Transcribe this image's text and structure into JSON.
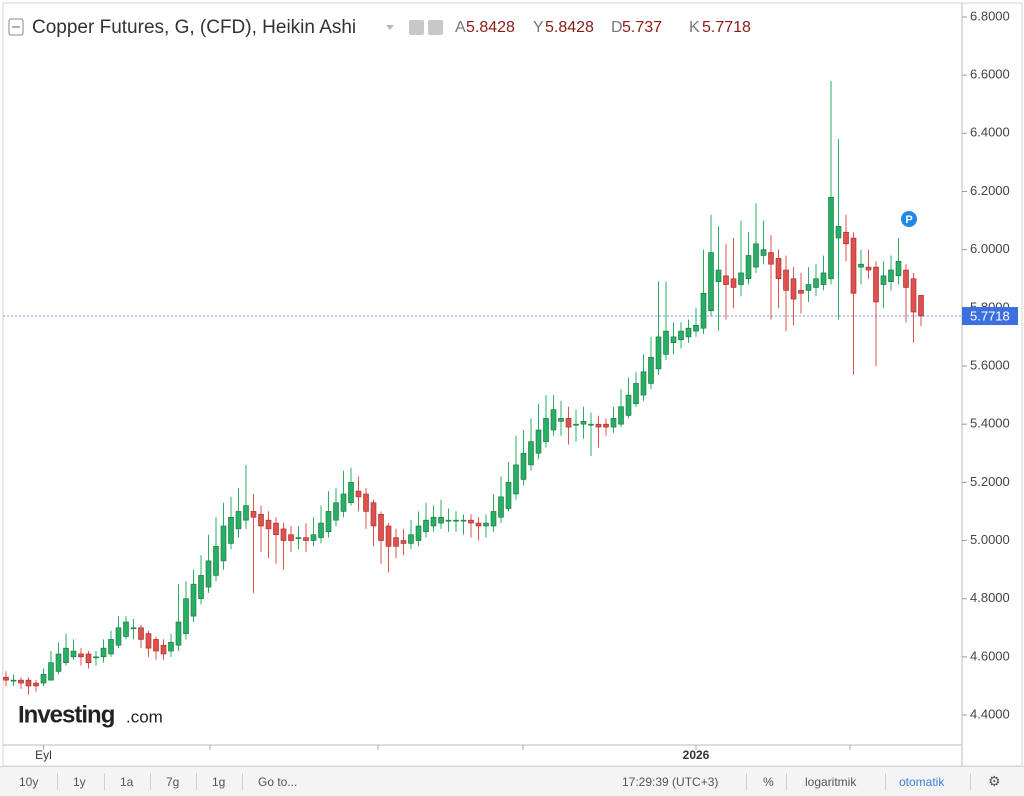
{
  "chart_data": {
    "type": "candlestick",
    "title": "Copper Futures, G, (CFD), Heikin Ashi",
    "ohlc_labels": [
      "A",
      "Y",
      "D",
      "K"
    ],
    "categories": [
      null,
      null,
      null,
      null,
      null,
      "Eyl",
      null,
      null,
      null,
      null,
      null,
      null,
      null,
      null,
      null,
      null,
      null,
      null,
      null,
      null,
      null,
      null,
      null,
      null,
      null,
      null,
      null,
      null,
      null,
      null,
      null,
      null,
      null,
      null,
      null,
      null,
      null,
      null,
      null,
      null,
      null,
      null,
      null,
      null,
      null,
      null,
      null,
      null,
      null,
      null,
      null,
      null,
      null,
      null,
      null,
      null,
      null,
      null,
      null,
      null,
      null,
      null,
      null,
      null,
      null,
      null,
      null,
      null,
      null,
      null,
      null,
      null,
      null,
      null,
      null,
      null,
      null,
      null,
      null,
      null,
      null,
      null,
      null,
      null,
      null,
      null,
      null,
      null,
      null,
      null,
      null,
      null,
      "2026",
      null,
      null,
      null,
      null,
      null,
      null,
      null,
      null,
      null,
      null,
      null,
      null,
      null,
      null,
      null,
      null,
      null,
      null,
      null,
      null,
      null,
      null,
      null,
      null,
      null,
      null,
      null,
      null,
      null,
      null
    ],
    "open": [
      4.53,
      4.52,
      4.52,
      4.52,
      4.51,
      4.51,
      4.52,
      4.55,
      4.58,
      4.6,
      4.61,
      4.61,
      4.6,
      4.6,
      4.61,
      4.64,
      4.67,
      4.7,
      4.7,
      4.68,
      4.66,
      4.64,
      4.62,
      4.64,
      4.68,
      4.74,
      4.8,
      4.84,
      4.88,
      4.93,
      4.99,
      5.04,
      5.07,
      5.1,
      5.09,
      5.07,
      5.06,
      5.04,
      5.02,
      5.01,
      5.01,
      5.0,
      5.01,
      5.03,
      5.07,
      5.1,
      5.13,
      5.17,
      5.16,
      5.13,
      5.09,
      5.05,
      5.01,
      5.0,
      4.99,
      5.0,
      5.03,
      5.05,
      5.06,
      5.07,
      5.07,
      5.07,
      5.07,
      5.06,
      5.05,
      5.05,
      5.08,
      5.11,
      5.16,
      5.21,
      5.26,
      5.3,
      5.34,
      5.38,
      5.41,
      5.42,
      5.4,
      5.4,
      5.4,
      5.4,
      5.4,
      5.39,
      5.4,
      5.43,
      5.47,
      5.5,
      5.54,
      5.59,
      5.64,
      5.68,
      5.69,
      5.7,
      5.72,
      5.73,
      5.79,
      5.89,
      5.91,
      5.9,
      5.88,
      5.9,
      5.94,
      5.98,
      5.99,
      5.97,
      5.93,
      5.9,
      5.86,
      5.86,
      5.87,
      5.88,
      5.9,
      6.04,
      6.06,
      6.04,
      5.94,
      5.94,
      5.94,
      5.88,
      5.89,
      5.91,
      5.93,
      5.9,
      5.8428
    ],
    "high": [
      4.55,
      4.54,
      4.53,
      4.53,
      4.52,
      4.56,
      4.62,
      4.65,
      4.68,
      4.66,
      4.63,
      4.62,
      4.62,
      4.66,
      4.69,
      4.74,
      4.74,
      4.73,
      4.71,
      4.69,
      4.67,
      4.66,
      4.68,
      4.85,
      4.86,
      4.9,
      4.95,
      5.02,
      5.08,
      5.13,
      5.15,
      5.18,
      5.26,
      5.16,
      5.12,
      5.1,
      5.08,
      5.06,
      5.05,
      5.05,
      5.06,
      5.08,
      5.12,
      5.17,
      5.18,
      5.24,
      5.25,
      5.22,
      5.18,
      5.14,
      5.1,
      5.06,
      5.04,
      5.04,
      5.07,
      5.1,
      5.13,
      5.12,
      5.14,
      5.11,
      5.1,
      5.09,
      5.09,
      5.08,
      5.09,
      5.16,
      5.22,
      5.27,
      5.36,
      5.38,
      5.42,
      5.47,
      5.5,
      5.5,
      5.48,
      5.46,
      5.45,
      5.46,
      5.44,
      5.43,
      5.42,
      5.46,
      5.52,
      5.56,
      5.58,
      5.64,
      5.7,
      5.89,
      5.89,
      5.75,
      5.75,
      5.76,
      5.8,
      6.0,
      6.12,
      6.08,
      6.02,
      6.04,
      6.1,
      6.06,
      6.16,
      6.1,
      6.05,
      6.0,
      5.98,
      5.94,
      5.92,
      5.94,
      5.95,
      5.98,
      6.58,
      6.38,
      6.12,
      6.06,
      6.0,
      6.0,
      5.96,
      5.96,
      5.98,
      6.04,
      5.95,
      5.92,
      5.8428
    ],
    "low": [
      4.5,
      4.5,
      4.49,
      4.47,
      4.48,
      4.5,
      4.52,
      4.54,
      4.57,
      4.59,
      4.57,
      4.56,
      4.57,
      4.58,
      4.6,
      4.63,
      4.66,
      4.66,
      4.63,
      4.6,
      4.59,
      4.59,
      4.6,
      4.62,
      4.66,
      4.72,
      4.78,
      4.82,
      4.86,
      4.9,
      4.97,
      5.01,
      5.04,
      4.82,
      4.96,
      4.94,
      4.92,
      4.9,
      4.96,
      4.97,
      4.96,
      4.98,
      4.99,
      5.01,
      5.05,
      5.08,
      5.12,
      5.1,
      5.04,
      4.98,
      4.92,
      4.89,
      4.94,
      4.95,
      4.97,
      4.98,
      5.01,
      5.03,
      5.04,
      5.03,
      5.03,
      5.02,
      5.01,
      5.0,
      5.01,
      5.03,
      5.06,
      5.1,
      5.14,
      5.19,
      5.24,
      5.28,
      5.32,
      5.36,
      5.36,
      5.33,
      5.34,
      5.35,
      5.29,
      5.32,
      5.36,
      5.37,
      5.39,
      5.42,
      5.46,
      5.48,
      5.52,
      5.57,
      5.62,
      5.64,
      5.66,
      5.68,
      5.7,
      5.71,
      5.77,
      5.72,
      5.76,
      5.8,
      5.84,
      5.88,
      5.92,
      5.95,
      5.76,
      5.8,
      5.72,
      5.74,
      5.78,
      5.82,
      5.84,
      5.86,
      5.88,
      5.76,
      5.96,
      5.57,
      5.88,
      5.9,
      5.6,
      5.8,
      5.86,
      5.88,
      5.75,
      5.68,
      5.737
    ],
    "close": [
      4.52,
      4.52,
      4.51,
      4.5,
      4.5,
      4.54,
      4.58,
      4.61,
      4.63,
      4.62,
      4.6,
      4.58,
      4.6,
      4.63,
      4.66,
      4.7,
      4.72,
      4.7,
      4.66,
      4.63,
      4.62,
      4.61,
      4.65,
      4.72,
      4.8,
      4.85,
      4.88,
      4.93,
      4.98,
      5.05,
      5.08,
      5.1,
      5.12,
      5.08,
      5.05,
      5.04,
      5.02,
      5.0,
      5.0,
      5.01,
      5.0,
      5.02,
      5.06,
      5.1,
      5.13,
      5.16,
      5.2,
      5.15,
      5.1,
      5.05,
      5.0,
      4.98,
      4.98,
      4.99,
      5.02,
      5.05,
      5.07,
      5.08,
      5.08,
      5.07,
      5.07,
      5.07,
      5.06,
      5.05,
      5.06,
      5.1,
      5.15,
      5.2,
      5.26,
      5.3,
      5.34,
      5.38,
      5.42,
      5.45,
      5.42,
      5.39,
      5.4,
      5.41,
      5.4,
      5.39,
      5.39,
      5.42,
      5.46,
      5.5,
      5.54,
      5.58,
      5.63,
      5.7,
      5.72,
      5.7,
      5.72,
      5.73,
      5.74,
      5.85,
      5.99,
      5.93,
      5.88,
      5.87,
      5.92,
      5.98,
      6.02,
      6.0,
      5.95,
      5.9,
      5.86,
      5.83,
      5.85,
      5.88,
      5.9,
      5.92,
      6.18,
      6.08,
      6.02,
      5.85,
      5.95,
      5.93,
      5.82,
      5.91,
      5.93,
      5.96,
      5.87,
      5.7856,
      5.7718
    ],
    "colors": {
      "up": "#26b063",
      "down": "#e0504c",
      "up_text": "#1e7a45",
      "down_text": "#8a1c16",
      "price_line": "#3d6fe0"
    },
    "ylim": [
      4.297,
      6.848
    ],
    "yticks": [
      {
        "value": 4.4,
        "label": "4.4000"
      },
      {
        "value": 4.6,
        "label": "4.6000"
      },
      {
        "value": 4.8,
        "label": "4.8000"
      },
      {
        "value": 5.0,
        "label": "5.0000"
      },
      {
        "value": 5.2,
        "label": "5.2000"
      },
      {
        "value": 5.4,
        "label": "5.4000"
      },
      {
        "value": 5.6,
        "label": "5.6000"
      },
      {
        "value": 5.8,
        "label": "5.8000"
      },
      {
        "value": 6.0,
        "label": "6.0000"
      },
      {
        "value": 6.2,
        "label": "6.2000"
      },
      {
        "value": 6.4,
        "label": "6.4000"
      },
      {
        "value": 6.6,
        "label": "6.6000"
      },
      {
        "value": 6.8,
        "label": "6.8000"
      }
    ],
    "grid": false,
    "log_scale": false
  },
  "logo": {
    "brand": "Investing",
    "suffix": ".com"
  },
  "marker": "P",
  "toolbar": {
    "ranges": [
      "10y",
      "1y",
      "1a",
      "7g",
      "1g"
    ],
    "goto": "Go to...",
    "time": "17:29:39 (UTC+3)",
    "percent": "%",
    "log": "logaritmik",
    "auto": "otomatik"
  }
}
